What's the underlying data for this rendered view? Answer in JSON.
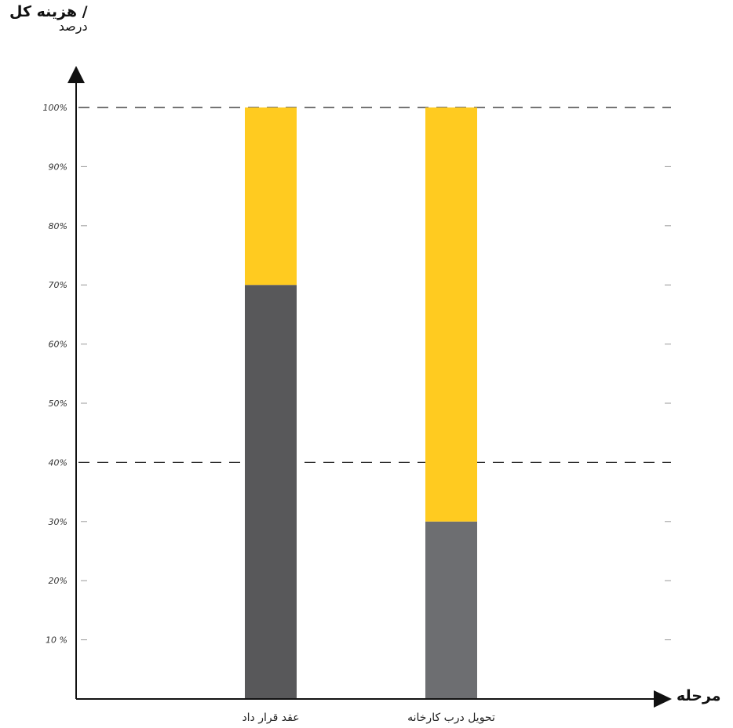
{
  "chart_data": {
    "type": "bar",
    "stacked": true,
    "ylabel": "/ هزینه کل",
    "ylabel_sub": "درصد",
    "xlabel": "مرحله",
    "ylim": [
      0,
      100
    ],
    "categories": [
      "عقد قرار داد",
      "تحویل درب کارخانه"
    ],
    "yticks": [
      {
        "value": 10,
        "label": "10 %"
      },
      {
        "value": 20,
        "label": "20%"
      },
      {
        "value": 30,
        "label": "30%"
      },
      {
        "value": 40,
        "label": "40%"
      },
      {
        "value": 50,
        "label": "50%"
      },
      {
        "value": 60,
        "label": "60%"
      },
      {
        "value": 70,
        "label": "70%"
      },
      {
        "value": 80,
        "label": "80%"
      },
      {
        "value": 90,
        "label": "90%"
      },
      {
        "value": 100,
        "label": "100%"
      }
    ],
    "reference_lines": [
      100,
      40
    ],
    "series": [
      {
        "values": [
          70,
          30
        ],
        "colors": [
          "#58585a",
          "#6d6e71"
        ]
      },
      {
        "values": [
          30,
          70
        ],
        "color": "#ffcb20"
      }
    ]
  }
}
